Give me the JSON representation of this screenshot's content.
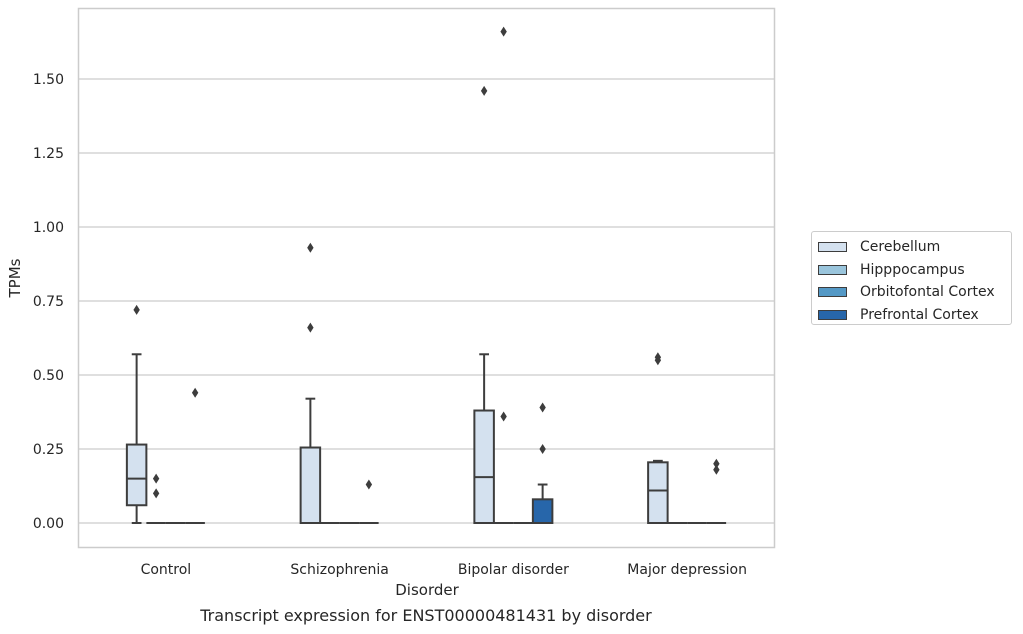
{
  "caption": "Transcript expression for ENST00000481431 by disorder",
  "chart_data": {
    "type": "box",
    "xlabel": "Disorder",
    "ylabel": "TPMs",
    "ylim": [
      -0.08,
      1.78
    ],
    "yticks": [
      0.0,
      0.25,
      0.5,
      0.75,
      1.0,
      1.25,
      1.5
    ],
    "ytick_labels": [
      "0.00",
      "0.25",
      "0.50",
      "0.75",
      "1.00",
      "1.25",
      "1.50"
    ],
    "grid": "horizontal",
    "legend_position": "right",
    "categories": [
      "Control",
      "Schizophrenia",
      "Bipolar disorder",
      "Major depression"
    ],
    "series": [
      {
        "name": "Cerebellum",
        "color": "#d4e1ef",
        "boxes": [
          {
            "whislo": 0.0,
            "q1": 0.06,
            "med": 0.15,
            "q3": 0.265,
            "whishi": 0.57,
            "fliers": [
              0.72
            ]
          },
          {
            "whislo": 0.0,
            "q1": 0.0,
            "med": 0.0,
            "q3": 0.255,
            "whishi": 0.42,
            "fliers": [
              0.66,
              0.93
            ]
          },
          {
            "whislo": 0.0,
            "q1": 0.0,
            "med": 0.155,
            "q3": 0.38,
            "whishi": 0.57,
            "fliers": [
              1.46
            ]
          },
          {
            "whislo": 0.0,
            "q1": 0.0,
            "med": 0.11,
            "q3": 0.205,
            "whishi": 0.21,
            "fliers": [
              0.55,
              0.56
            ]
          }
        ]
      },
      {
        "name": "Hipppocampus",
        "color": "#9ac5dc",
        "boxes": [
          {
            "whislo": 0.0,
            "q1": 0.0,
            "med": 0.0,
            "q3": 0.0,
            "whishi": 0.0,
            "fliers": [
              0.1,
              0.15
            ]
          },
          {
            "whislo": 0.0,
            "q1": 0.0,
            "med": 0.0,
            "q3": 0.0,
            "whishi": 0.0,
            "fliers": []
          },
          {
            "whislo": 0.0,
            "q1": 0.0,
            "med": 0.0,
            "q3": 0.0,
            "whishi": 0.0,
            "fliers": [
              0.36,
              1.66
            ]
          },
          {
            "whislo": 0.0,
            "q1": 0.0,
            "med": 0.0,
            "q3": 0.0,
            "whishi": 0.0,
            "fliers": []
          }
        ]
      },
      {
        "name": "Orbitofontal Cortex",
        "color": "#5499c6",
        "boxes": [
          {
            "whislo": 0.0,
            "q1": 0.0,
            "med": 0.0,
            "q3": 0.0,
            "whishi": 0.0,
            "fliers": []
          },
          {
            "whislo": 0.0,
            "q1": 0.0,
            "med": 0.0,
            "q3": 0.0,
            "whishi": 0.0,
            "fliers": []
          },
          {
            "whislo": 0.0,
            "q1": 0.0,
            "med": 0.0,
            "q3": 0.0,
            "whishi": 0.0,
            "fliers": []
          },
          {
            "whislo": 0.0,
            "q1": 0.0,
            "med": 0.0,
            "q3": 0.0,
            "whishi": 0.0,
            "fliers": []
          }
        ]
      },
      {
        "name": "Prefrontal Cortex",
        "color": "#2766aa",
        "boxes": [
          {
            "whislo": 0.0,
            "q1": 0.0,
            "med": 0.0,
            "q3": 0.0,
            "whishi": 0.0,
            "fliers": [
              0.44
            ]
          },
          {
            "whislo": 0.0,
            "q1": 0.0,
            "med": 0.0,
            "q3": 0.0,
            "whishi": 0.0,
            "fliers": [
              0.13
            ]
          },
          {
            "whislo": 0.0,
            "q1": 0.0,
            "med": 0.0,
            "q3": 0.08,
            "whishi": 0.13,
            "fliers": [
              0.25,
              0.39
            ]
          },
          {
            "whislo": 0.0,
            "q1": 0.0,
            "med": 0.0,
            "q3": 0.0,
            "whishi": 0.0,
            "fliers": [
              0.18,
              0.2
            ]
          }
        ]
      }
    ]
  }
}
